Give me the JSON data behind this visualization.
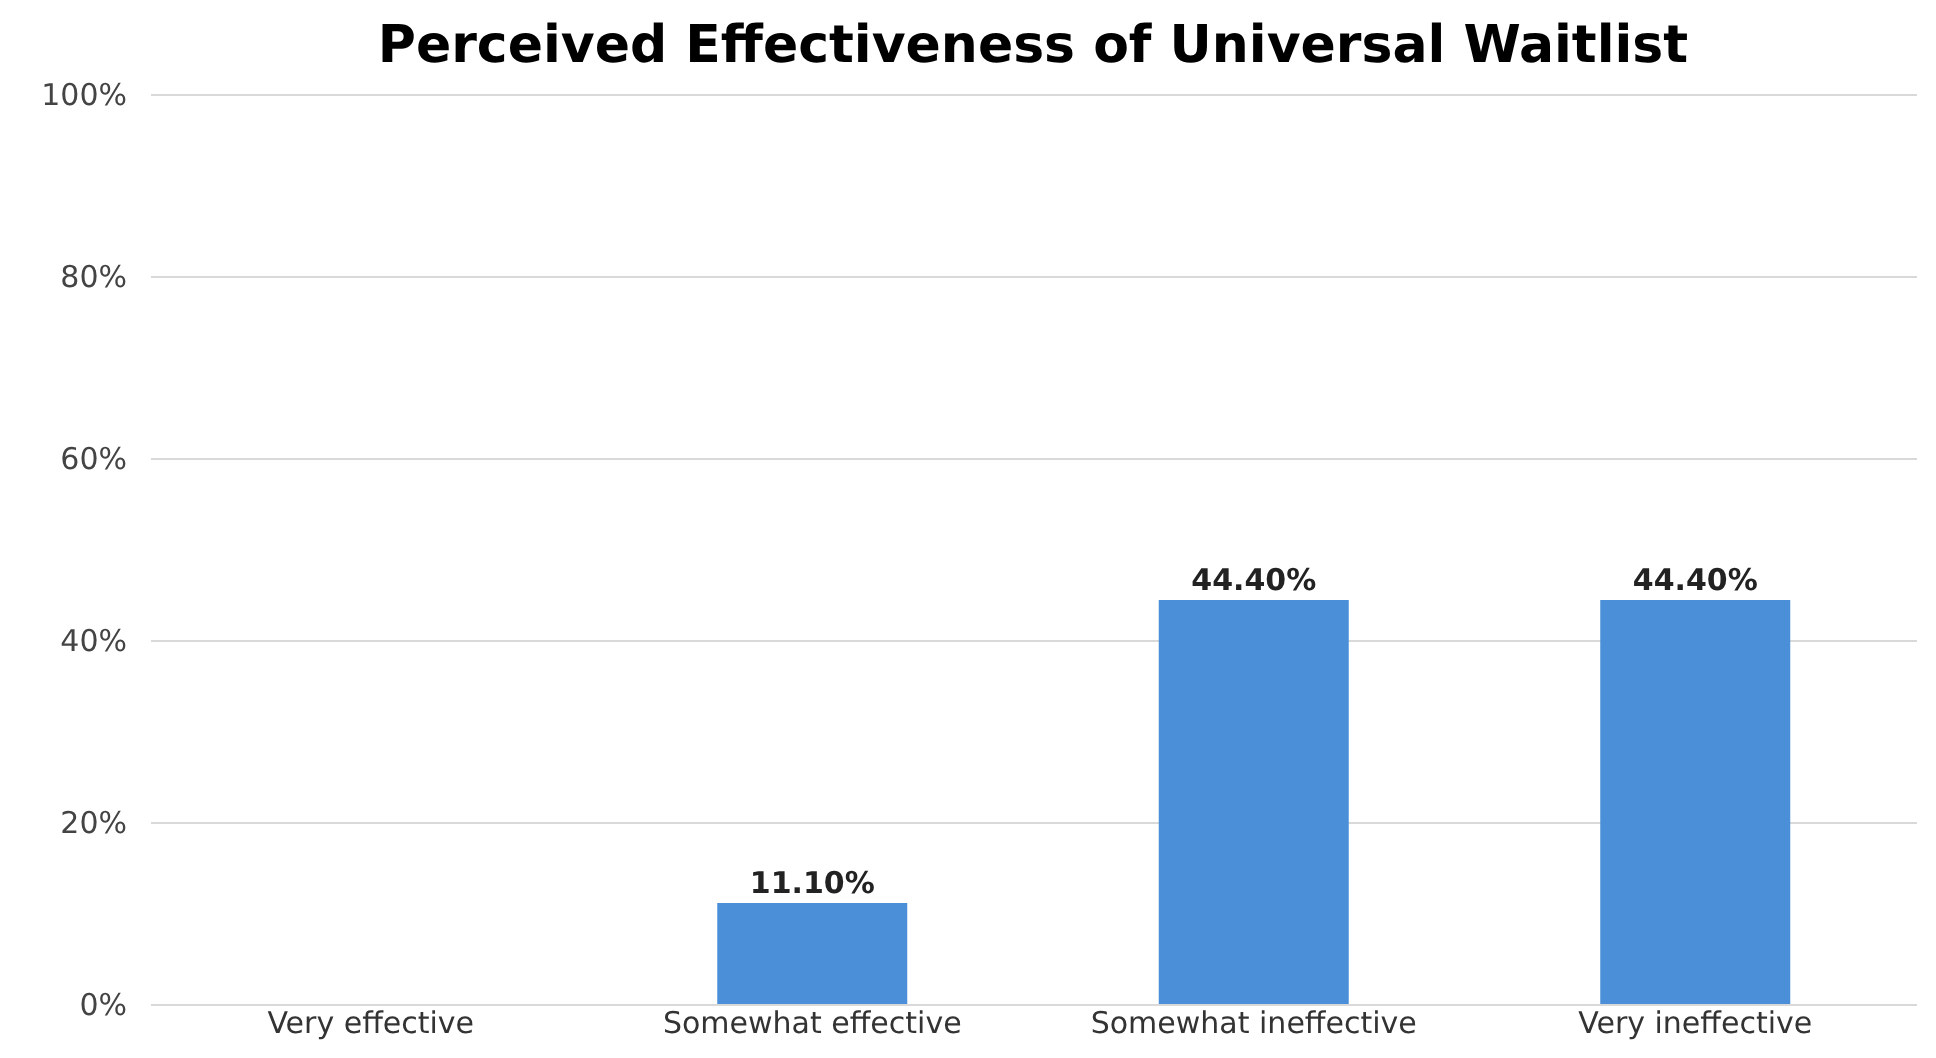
{
  "chart_data": {
    "type": "bar",
    "title": "Perceived Effectiveness of Universal Waitlist",
    "categories": [
      "Very effective",
      "Somewhat effective",
      "Somewhat ineffective",
      "Very ineffective"
    ],
    "values": [
      0,
      11.1,
      44.4,
      44.4
    ],
    "value_labels": [
      null,
      "11.10%",
      "44.40%",
      "44.40%"
    ],
    "color": "#4a8fd8",
    "ylim": [
      0,
      100
    ],
    "yticks": [
      {
        "value": 0,
        "label": "0%"
      },
      {
        "value": 20,
        "label": "20%"
      },
      {
        "value": 40,
        "label": "40%"
      },
      {
        "value": 60,
        "label": "60%"
      },
      {
        "value": 80,
        "label": "80%"
      },
      {
        "value": 100,
        "label": "100%"
      }
    ],
    "grid": "y"
  }
}
